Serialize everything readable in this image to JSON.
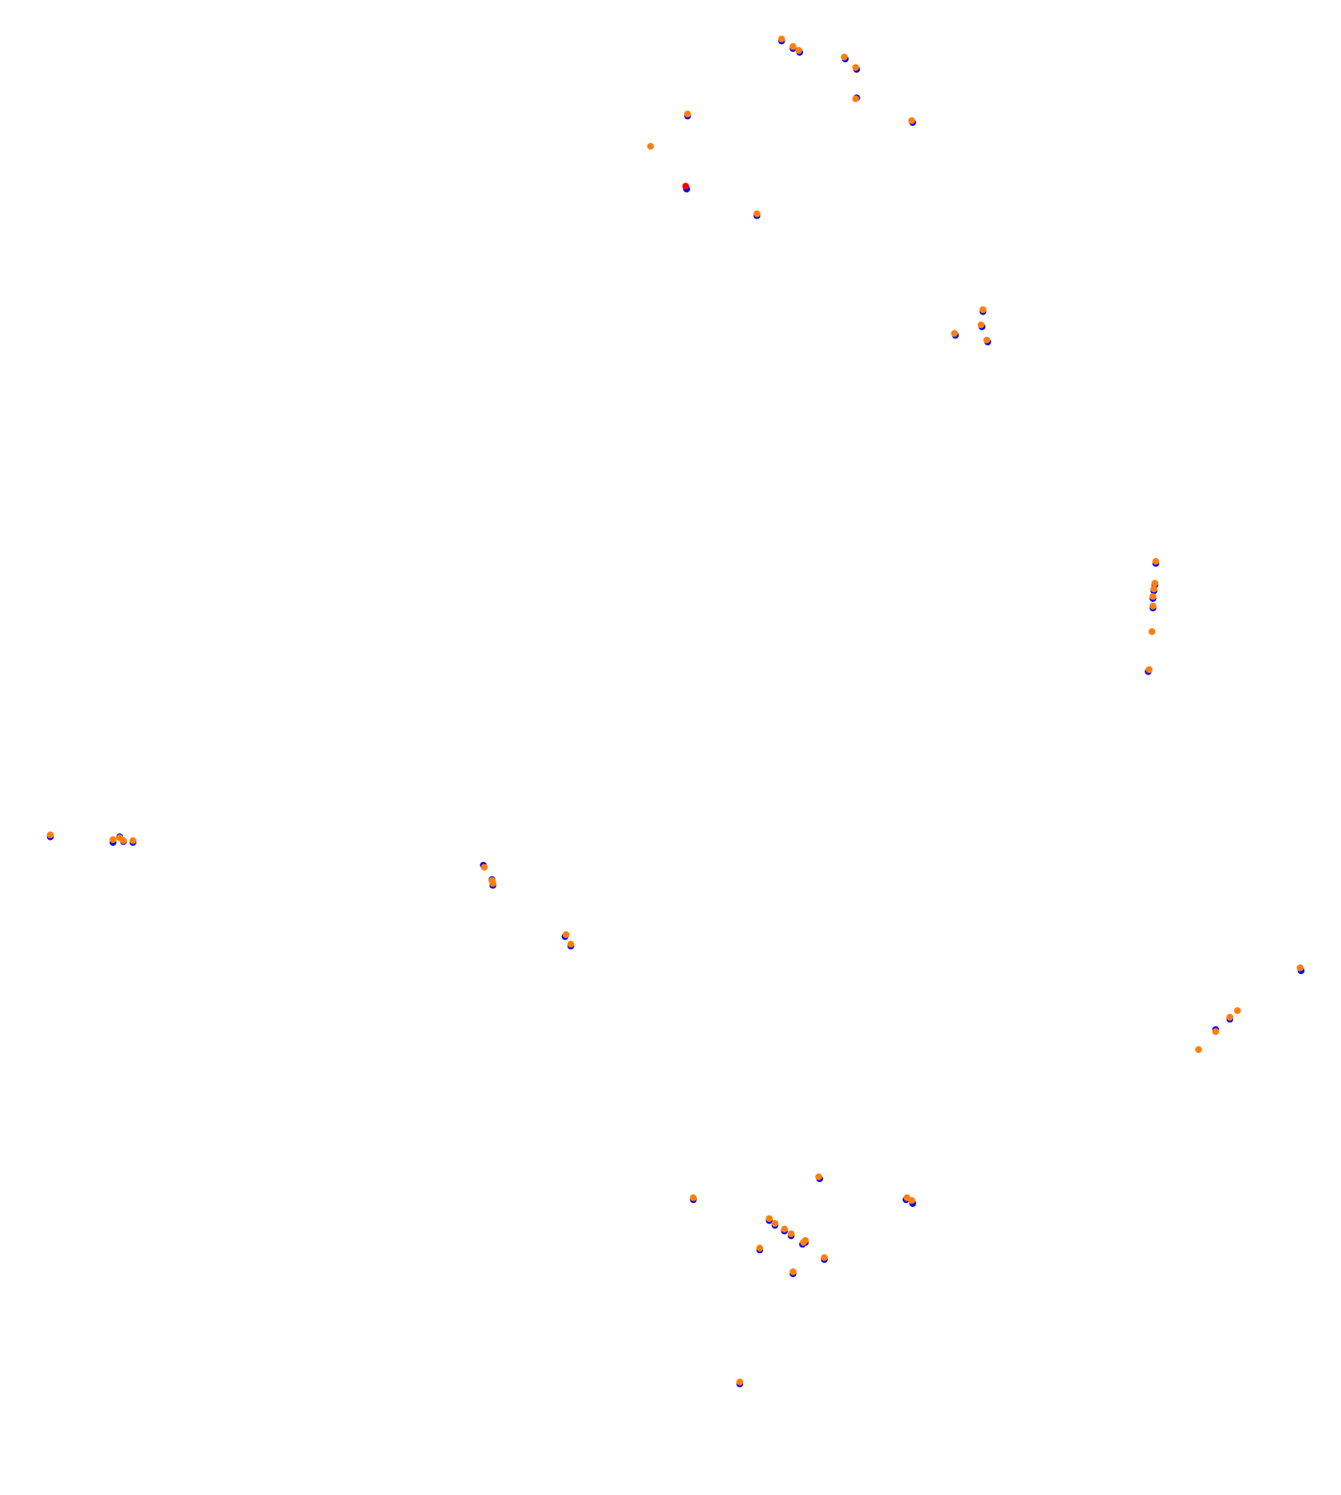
{
  "chart_data": {
    "type": "scatter",
    "title": "",
    "xlabel": "",
    "ylabel": "",
    "xlim": [
      0,
      1412
    ],
    "ylim": [
      1574,
      0
    ],
    "grid": false,
    "axes_visible": false,
    "legend": "none",
    "colors": {
      "series_a": "#0000ff",
      "series_b": "#ff7f0e",
      "highlight": "#ff0000"
    },
    "series": [
      {
        "color": "#0000ff",
        "points": [
          [
            823,
            43
          ],
          [
            835,
            51
          ],
          [
            842,
            55
          ],
          [
            890,
            62
          ],
          [
            902,
            73
          ],
          [
            902,
            103
          ],
          [
            961,
            129
          ],
          [
            724,
            122
          ],
          [
            723,
            199
          ],
          [
            797,
            227
          ],
          [
            1035,
            328
          ],
          [
            1034,
            344
          ],
          [
            1006,
            353
          ],
          [
            1040,
            360
          ],
          [
            1217,
            593
          ],
          [
            1216,
            616
          ],
          [
            1215,
            622
          ],
          [
            1214,
            630
          ],
          [
            1214,
            640
          ],
          [
            1209,
            707
          ],
          [
            53,
            881
          ],
          [
            119,
            887
          ],
          [
            126,
            881
          ],
          [
            130,
            886
          ],
          [
            140,
            887
          ],
          [
            509,
            911
          ],
          [
            518,
            926
          ],
          [
            519,
            932
          ],
          [
            595,
            986
          ],
          [
            601,
            996
          ],
          [
            1370,
            1022
          ],
          [
            1295,
            1073
          ],
          [
            1280,
            1084
          ],
          [
            863,
            1241
          ],
          [
            730,
            1263
          ],
          [
            954,
            1263
          ],
          [
            961,
            1267
          ],
          [
            810,
            1285
          ],
          [
            816,
            1290
          ],
          [
            826,
            1296
          ],
          [
            833,
            1301
          ],
          [
            845,
            1310
          ],
          [
            848,
            1308
          ],
          [
            800,
            1316
          ],
          [
            868,
            1326
          ],
          [
            835,
            1341
          ],
          [
            779,
            1457
          ]
        ]
      },
      {
        "color": "#ff7f0e",
        "points": [
          [
            823,
            41
          ],
          [
            835,
            49
          ],
          [
            841,
            53
          ],
          [
            889,
            60
          ],
          [
            901,
            71
          ],
          [
            901,
            104
          ],
          [
            960,
            127
          ],
          [
            724,
            120
          ],
          [
            685,
            154
          ],
          [
            797,
            225
          ],
          [
            1035,
            326
          ],
          [
            1033,
            342
          ],
          [
            1005,
            351
          ],
          [
            1039,
            358
          ],
          [
            1217,
            591
          ],
          [
            1216,
            614
          ],
          [
            1215,
            620
          ],
          [
            1214,
            628
          ],
          [
            1214,
            638
          ],
          [
            1213,
            665
          ],
          [
            1210,
            705
          ],
          [
            53,
            879
          ],
          [
            119,
            884
          ],
          [
            126,
            882
          ],
          [
            130,
            885
          ],
          [
            140,
            885
          ],
          [
            510,
            913
          ],
          [
            518,
            927
          ],
          [
            519,
            930
          ],
          [
            596,
            984
          ],
          [
            601,
            994
          ],
          [
            1369,
            1019
          ],
          [
            1303,
            1064
          ],
          [
            1295,
            1071
          ],
          [
            1280,
            1086
          ],
          [
            1262,
            1105
          ],
          [
            862,
            1239
          ],
          [
            730,
            1261
          ],
          [
            955,
            1261
          ],
          [
            960,
            1264
          ],
          [
            810,
            1283
          ],
          [
            816,
            1288
          ],
          [
            826,
            1294
          ],
          [
            833,
            1299
          ],
          [
            846,
            1308
          ],
          [
            848,
            1306
          ],
          [
            800,
            1314
          ],
          [
            868,
            1324
          ],
          [
            835,
            1339
          ],
          [
            779,
            1455
          ]
        ]
      },
      {
        "color": "#ff0000",
        "points": [
          [
            722,
            196
          ]
        ]
      }
    ]
  }
}
